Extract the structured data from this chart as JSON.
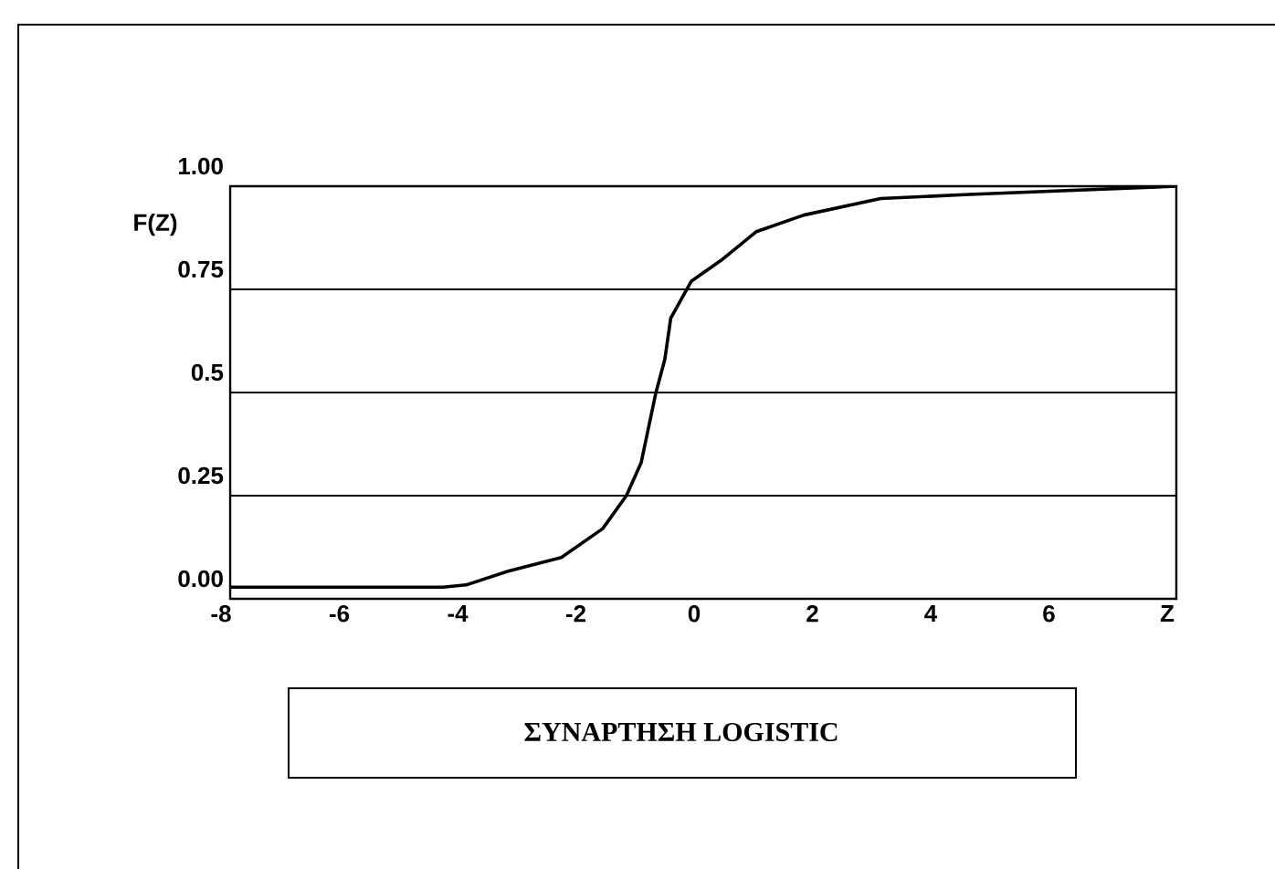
{
  "chart_data": {
    "type": "line",
    "title": "ΣΥΝΑΡΤΗΣΗ LOGISTIC",
    "ylabel": "F(Z)",
    "xlim": [
      -8,
      8
    ],
    "ylim": [
      0,
      1
    ],
    "xticks": [
      -8,
      -6,
      -4,
      -2,
      0,
      2,
      4,
      6,
      {
        "value": 8,
        "label": "Z"
      }
    ],
    "yticks": [
      {
        "value": 0,
        "label": "0.00"
      },
      0.25,
      0.5,
      0.75,
      {
        "value": 1,
        "label": "1.00"
      }
    ],
    "grid": "y",
    "line_style": "solid",
    "marker": "none",
    "series": [
      {
        "color": "#000000",
        "x": [
          -8,
          -4.4,
          -4,
          -3.3,
          -2.4,
          -1.7,
          -1.3,
          -1.05,
          -0.8,
          -0.65,
          -0.55,
          -0.2,
          0.3,
          0.9,
          1.7,
          3,
          4.5,
          8
        ],
        "values": [
          0.028,
          0.028,
          0.034,
          0.067,
          0.1,
          0.17,
          0.25,
          0.33,
          0.5,
          0.58,
          0.68,
          0.77,
          0.82,
          0.89,
          0.93,
          0.97,
          0.98,
          1.0
        ]
      }
    ]
  }
}
